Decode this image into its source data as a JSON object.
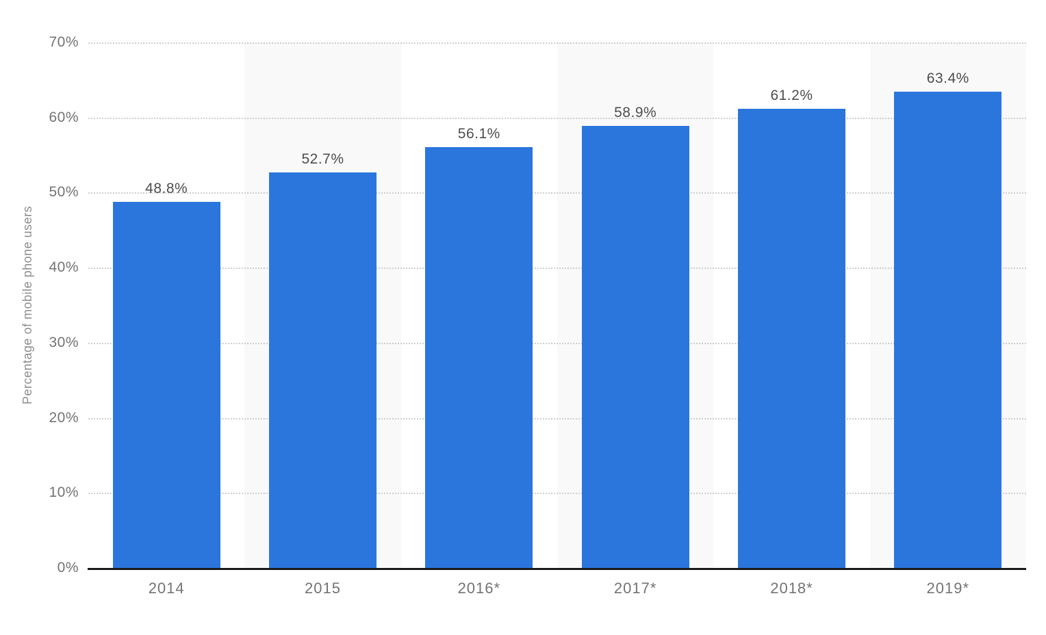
{
  "chart_data": {
    "type": "bar",
    "categories": [
      "2014",
      "2015",
      "2016*",
      "2017*",
      "2018*",
      "2019*"
    ],
    "values": [
      48.8,
      52.7,
      56.1,
      58.9,
      61.2,
      63.4
    ],
    "value_labels": [
      "48.8%",
      "52.7%",
      "56.1%",
      "58.9%",
      "61.2%",
      "63.4%"
    ],
    "ylabel": "Percentage of mobile phone users",
    "ylim": [
      0,
      70
    ],
    "yticks": [
      0,
      10,
      20,
      30,
      40,
      50,
      60,
      70
    ],
    "ytick_labels": [
      "0%",
      "10%",
      "20%",
      "30%",
      "40%",
      "50%",
      "60%",
      "70%"
    ],
    "grid": "horizontal-dotted",
    "legend": "none",
    "band_pattern": "alternating columns, odd columns shaded",
    "colors": {
      "bar": "#2a76dd",
      "band": "#f9f9f9",
      "gridline": "#cdcdcd",
      "axis_line": "#1a1a1a",
      "tick_text": "#737373",
      "value_text": "#4d4d4d",
      "axis_title_text": "#8c8c8c",
      "background": "#ffffff"
    }
  }
}
